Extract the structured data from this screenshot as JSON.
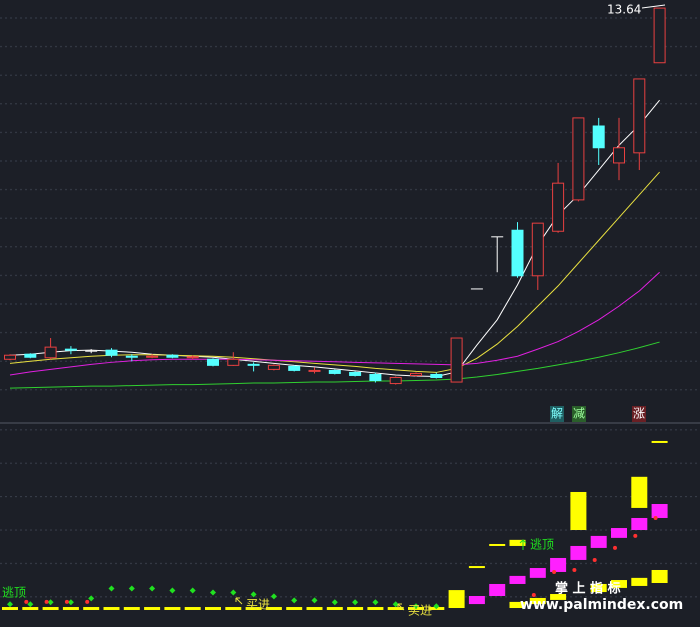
{
  "chart_data": [
    {
      "type": "candlestick",
      "ylim": [
        5.5,
        13.8
      ],
      "up_color": "#e84040",
      "down_color": "#54ffff",
      "flat_color": "#ffffff",
      "candles": [
        {
          "open": 6.7,
          "close": 6.78,
          "high": 6.8,
          "low": 6.68
        },
        {
          "open": 6.8,
          "close": 6.74,
          "high": 6.82,
          "low": 6.72
        },
        {
          "open": 6.73,
          "close": 6.94,
          "high": 7.12,
          "low": 6.7
        },
        {
          "open": 6.9,
          "close": 6.88,
          "high": 6.96,
          "low": 6.8
        },
        {
          "open": 6.86,
          "close": 6.86,
          "high": 6.9,
          "low": 6.82
        },
        {
          "open": 6.88,
          "close": 6.78,
          "high": 6.92,
          "low": 6.74
        },
        {
          "open": 6.76,
          "close": 6.74,
          "high": 6.8,
          "low": 6.66
        },
        {
          "open": 6.74,
          "close": 6.76,
          "high": 6.8,
          "low": 6.72
        },
        {
          "open": 6.78,
          "close": 6.74,
          "high": 6.8,
          "low": 6.72
        },
        {
          "open": 6.73,
          "close": 6.75,
          "high": 6.78,
          "low": 6.7
        },
        {
          "open": 6.7,
          "close": 6.58,
          "high": 6.72,
          "low": 6.56
        },
        {
          "open": 6.58,
          "close": 6.7,
          "high": 6.84,
          "low": 6.57
        },
        {
          "open": 6.6,
          "close": 6.58,
          "high": 6.64,
          "low": 6.46
        },
        {
          "open": 6.5,
          "close": 6.58,
          "high": 6.6,
          "low": 6.48
        },
        {
          "open": 6.56,
          "close": 6.48,
          "high": 6.58,
          "low": 6.46
        },
        {
          "open": 6.46,
          "close": 6.48,
          "high": 6.54,
          "low": 6.42
        },
        {
          "open": 6.48,
          "close": 6.42,
          "high": 6.5,
          "low": 6.4
        },
        {
          "open": 6.44,
          "close": 6.38,
          "high": 6.46,
          "low": 6.36
        },
        {
          "open": 6.4,
          "close": 6.28,
          "high": 6.44,
          "low": 6.24
        },
        {
          "open": 6.22,
          "close": 6.34,
          "high": 6.36,
          "low": 6.2
        },
        {
          "open": 6.38,
          "close": 6.42,
          "high": 6.44,
          "low": 6.36
        },
        {
          "open": 6.4,
          "close": 6.34,
          "high": 6.44,
          "low": 6.32
        },
        {
          "open": 6.25,
          "close": 7.12,
          "high": 7.12,
          "low": 6.25
        },
        {
          "open": 8.09,
          "close": 8.09,
          "high": 8.09,
          "low": 8.09
        },
        {
          "open": 9.12,
          "close": 9.12,
          "high": 9.12,
          "low": 8.42
        },
        {
          "open": 9.25,
          "close": 8.35,
          "high": 9.41,
          "low": 8.31
        },
        {
          "open": 8.35,
          "close": 9.39,
          "high": 9.39,
          "low": 8.07
        },
        {
          "open": 9.23,
          "close": 10.18,
          "high": 10.58,
          "low": 9.2
        },
        {
          "open": 9.85,
          "close": 11.47,
          "high": 11.47,
          "low": 9.82
        },
        {
          "open": 11.31,
          "close": 10.88,
          "high": 11.47,
          "low": 10.54
        },
        {
          "open": 10.58,
          "close": 10.88,
          "high": 11.47,
          "low": 10.24
        },
        {
          "open": 10.78,
          "close": 12.24,
          "high": 12.24,
          "low": 10.44
        },
        {
          "open": 12.56,
          "close": 13.64,
          "high": 13.64,
          "low": 12.56
        }
      ],
      "lines": [
        {
          "color": "#ffffff",
          "values": [
            6.78,
            6.8,
            6.84,
            6.87,
            6.88,
            6.86,
            6.84,
            6.8,
            6.78,
            6.76,
            6.74,
            6.7,
            6.66,
            6.62,
            6.58,
            6.55,
            6.51,
            6.47,
            6.43,
            6.39,
            6.37,
            6.36,
            6.45,
            6.98,
            7.48,
            8.17,
            8.96,
            9.55,
            9.95,
            10.44,
            10.93,
            11.33,
            11.82
          ]
        },
        {
          "color": "#e8e040",
          "values": [
            6.62,
            6.66,
            6.7,
            6.73,
            6.76,
            6.78,
            6.79,
            6.79,
            6.78,
            6.77,
            6.76,
            6.74,
            6.71,
            6.68,
            6.65,
            6.62,
            6.59,
            6.56,
            6.52,
            6.49,
            6.46,
            6.44,
            6.52,
            6.72,
            7.0,
            7.35,
            7.75,
            8.15,
            8.6,
            9.05,
            9.5,
            9.95,
            10.4
          ]
        },
        {
          "color": "#e020e0",
          "values": [
            6.39,
            6.45,
            6.5,
            6.55,
            6.6,
            6.64,
            6.67,
            6.69,
            6.7,
            6.7,
            6.7,
            6.7,
            6.69,
            6.68,
            6.67,
            6.66,
            6.65,
            6.64,
            6.63,
            6.62,
            6.61,
            6.6,
            6.59,
            6.62,
            6.68,
            6.76,
            6.9,
            7.05,
            7.25,
            7.48,
            7.75,
            8.05,
            8.42
          ]
        },
        {
          "color": "#30d030",
          "values": [
            6.13,
            6.14,
            6.15,
            6.16,
            6.17,
            6.17,
            6.18,
            6.19,
            6.2,
            6.2,
            6.21,
            6.22,
            6.23,
            6.23,
            6.24,
            6.25,
            6.25,
            6.26,
            6.27,
            6.27,
            6.28,
            6.29,
            6.31,
            6.35,
            6.4,
            6.46,
            6.52,
            6.59,
            6.66,
            6.74,
            6.83,
            6.93,
            7.04
          ]
        }
      ],
      "signals": [
        "解",
        "减",
        "涨"
      ]
    },
    {
      "type": "indicator",
      "ylim": [
        0,
        100
      ],
      "boxes": [
        {
          "color": "#ffff00",
          "values": [
            null,
            null,
            null,
            null,
            null,
            null,
            null,
            null,
            null,
            null,
            null,
            null,
            null,
            null,
            null,
            null,
            null,
            null,
            null,
            null,
            null,
            null,
            [
              7.1,
              16.2
            ],
            [
              27.4,
              28.4
            ],
            [
              38.6,
              39.6
            ],
            [
              38.6,
              41.7
            ],
            null,
            null,
            [
              46.7,
              66.0
            ],
            null,
            null,
            [
              57.9,
              73.7
            ],
            [
              90.9,
              91.9
            ]
          ]
        },
        {
          "color": "#ffff00",
          "values": [
            [
              6.1,
              7.6
            ],
            [
              6.1,
              7.6
            ],
            [
              6.1,
              7.6
            ],
            [
              6.1,
              7.6
            ],
            [
              6.1,
              7.6
            ],
            [
              6.1,
              7.6
            ],
            [
              6.1,
              7.6
            ],
            [
              6.1,
              7.6
            ],
            [
              6.1,
              7.6
            ],
            [
              6.1,
              7.6
            ],
            [
              6.1,
              7.6
            ],
            [
              6.1,
              7.6
            ],
            [
              6.1,
              7.6
            ],
            [
              6.1,
              7.6
            ],
            [
              6.1,
              7.6
            ],
            [
              6.1,
              7.6
            ],
            [
              6.1,
              7.6
            ],
            [
              6.1,
              7.6
            ],
            [
              6.1,
              7.6
            ],
            [
              6.1,
              7.6
            ],
            [
              6.1,
              7.6
            ],
            [
              6.1,
              7.6
            ],
            null,
            null,
            null,
            [
              7.1,
              10.2
            ],
            [
              9.1,
              12.2
            ],
            [
              11.2,
              14.2
            ],
            null,
            [
              15.2,
              19.3
            ],
            [
              17.3,
              21.3
            ],
            [
              18.3,
              22.4
            ],
            [
              19.8,
              26.4
            ]
          ]
        },
        {
          "color": "#ff20ff",
          "values": [
            null,
            null,
            null,
            null,
            null,
            null,
            null,
            null,
            null,
            null,
            null,
            null,
            null,
            null,
            null,
            null,
            null,
            null,
            null,
            null,
            null,
            null,
            null,
            [
              9.1,
              13.2
            ],
            [
              13.2,
              19.3
            ],
            [
              19.3,
              23.4
            ],
            [
              22.4,
              27.4
            ],
            [
              25.4,
              32.5
            ],
            [
              31.5,
              38.6
            ],
            [
              37.6,
              43.7
            ],
            [
              42.7,
              47.7
            ],
            [
              46.7,
              52.8
            ],
            [
              52.8,
              59.9
            ]
          ]
        }
      ],
      "diamonds": {
        "color": "#20e020",
        "values": [
          9,
          9,
          10,
          10,
          12,
          17,
          17,
          17,
          16,
          16,
          15,
          15,
          14,
          13,
          11,
          11,
          10,
          10,
          10,
          9,
          8,
          8,
          null,
          null,
          null,
          null,
          null,
          null,
          null,
          null,
          null,
          null,
          null
        ]
      },
      "dots": {
        "color": "#ff3030",
        "values": [
          null,
          10.2,
          10.2,
          10.2,
          10.2,
          null,
          null,
          null,
          null,
          null,
          null,
          null,
          null,
          null,
          null,
          null,
          null,
          null,
          null,
          null,
          null,
          null,
          null,
          null,
          null,
          null,
          13.7,
          25.4,
          26.4,
          31.5,
          37.6,
          43.7,
          52.8
        ]
      },
      "annotations": [
        "逃顶",
        "买进",
        "买进",
        "逃顶"
      ],
      "watermark": [
        "掌 上 指 标",
        "www.palmindex.com"
      ]
    }
  ]
}
